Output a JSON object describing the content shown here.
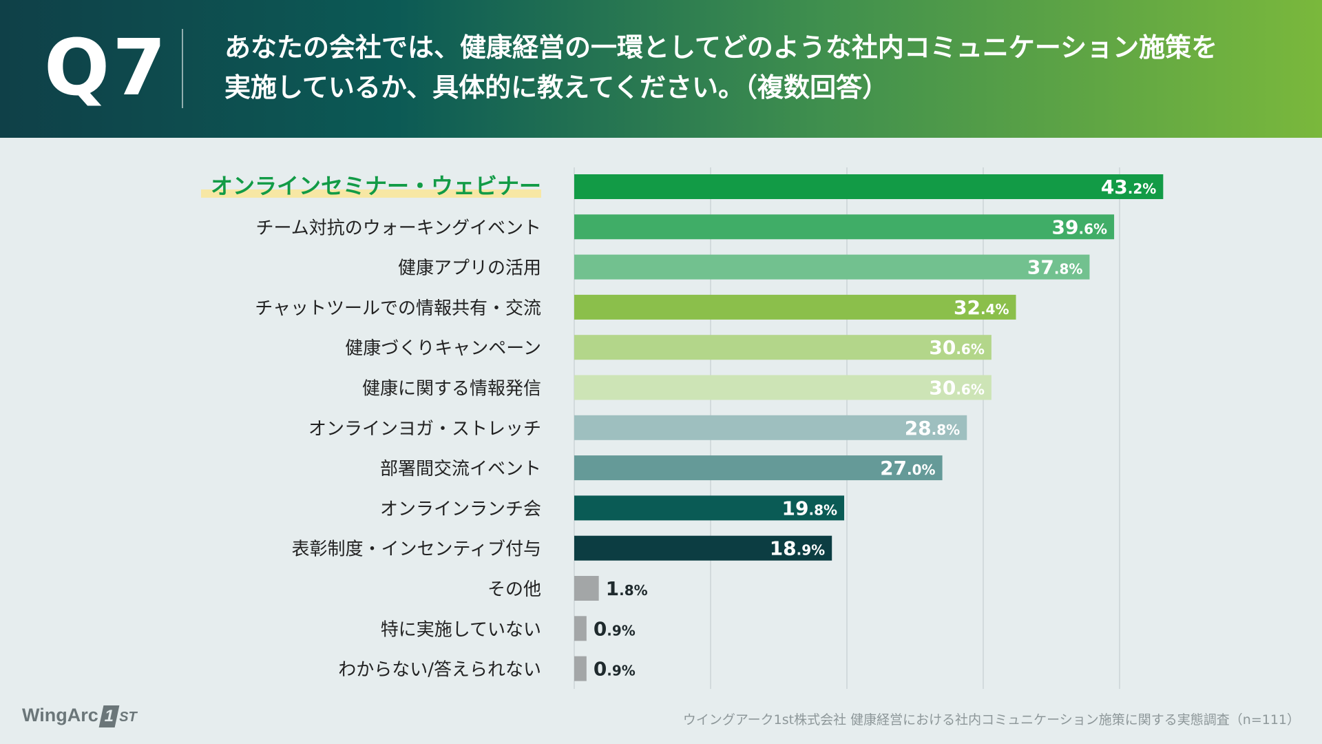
{
  "header": {
    "question_number": "Q7",
    "question_line1": "あなたの会社では、健康経営の一環としてどのような社内コミュニケーション施策を",
    "question_line2": "実施しているか、具体的に教えてください。（複数回答）"
  },
  "colors": {
    "header_start": "#0f4048",
    "header_end": "#7ab83c",
    "highlight_text": "#129b46",
    "highlight_band": "#f7e7a4",
    "label_text": "#222222",
    "grid": "#cbd4d6",
    "other_bars": "#a3a6a7"
  },
  "chart_data": {
    "type": "bar",
    "orientation": "horizontal",
    "title": "あなたの会社では、健康経営の一環としてどのような社内コミュニケーション施策を実施しているか、具体的に教えてください。（複数回答）",
    "unit": "%",
    "xlim": [
      0,
      50
    ],
    "grid": true,
    "grid_values": [
      0,
      10,
      20,
      30,
      40
    ],
    "highlighted_category": "オンラインセミナー・ウェビナー",
    "categories": [
      "オンラインセミナー・ウェビナー",
      "チーム対抗のウォーキングイベント",
      "健康アプリの活用",
      "チャットツールでの情報共有・交流",
      "健康づくりキャンペーン",
      "健康に関する情報発信",
      "オンラインヨガ・ストレッチ",
      "部署間交流イベント",
      "オンラインランチ会",
      "表彰制度・インセンティブ付与",
      "その他",
      "特に実施していない",
      "わからない/答えられない"
    ],
    "values": [
      43.2,
      39.6,
      37.8,
      32.4,
      30.6,
      30.6,
      28.8,
      27.0,
      19.8,
      18.9,
      1.8,
      0.9,
      0.9
    ],
    "value_labels_int": [
      "43",
      "39",
      "37",
      "32",
      "30",
      "30",
      "28",
      "27",
      "19",
      "18",
      "1",
      "0",
      "0"
    ],
    "value_labels_dec": [
      ".2%",
      ".6%",
      ".8%",
      ".4%",
      ".6%",
      ".6%",
      ".8%",
      ".0%",
      ".8%",
      ".9%",
      ".8%",
      ".9%",
      ".9%"
    ],
    "bar_colors": [
      "#129b46",
      "#40ad67",
      "#72c18f",
      "#8bbf4b",
      "#b3d68a",
      "#cde4b6",
      "#9ebfbf",
      "#659a98",
      "#0a5b55",
      "#0c3d42",
      "#a3a6a7",
      "#a3a6a7",
      "#a3a6a7"
    ]
  },
  "footer": {
    "logo_text": "WingArc",
    "logo_mark": "1",
    "logo_suffix": "ST",
    "source": "ウイングアーク1st株式会社 健康経営における社内コミュニケーション施策に関する実態調査（n=111）"
  }
}
